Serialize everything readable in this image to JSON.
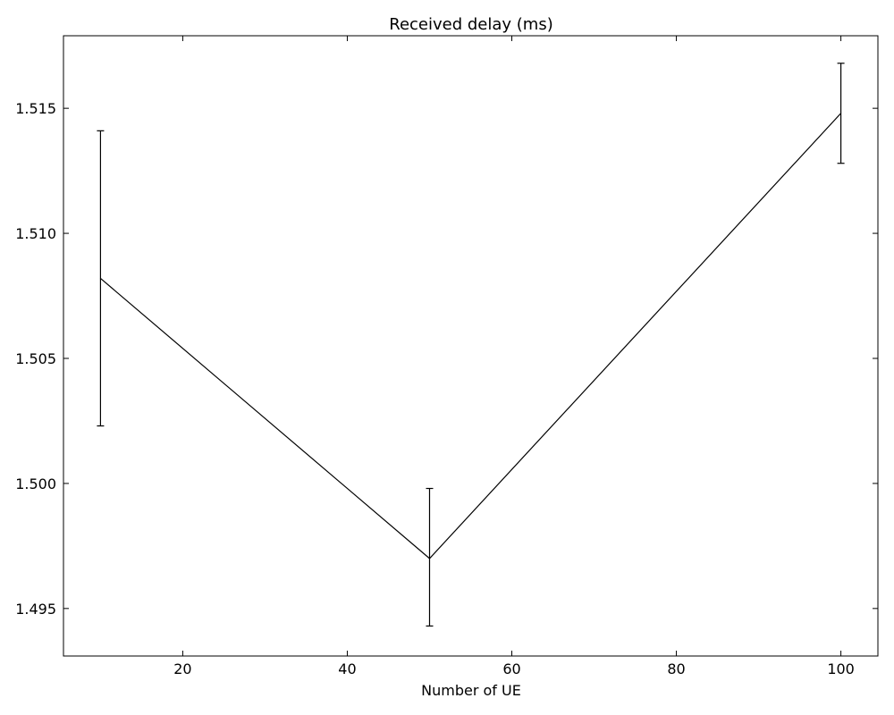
{
  "chart_data": {
    "type": "line",
    "title": "Received delay (ms)",
    "xlabel": "Number of UE",
    "ylabel": "",
    "xlim": [
      5.5,
      104.5
    ],
    "ylim": [
      1.4931,
      1.5179
    ],
    "x_ticks": [
      20,
      40,
      60,
      80,
      100
    ],
    "x_tick_labels": [
      "20",
      "40",
      "60",
      "80",
      "100"
    ],
    "y_ticks": [
      1.495,
      1.5,
      1.505,
      1.51,
      1.515
    ],
    "y_tick_labels": [
      "1.495",
      "1.500",
      "1.505",
      "1.510",
      "1.515"
    ],
    "grid": false,
    "legend": "none",
    "line_color": "#000000",
    "series": [
      {
        "x": [
          10,
          50,
          100
        ],
        "y": [
          1.5082,
          1.497,
          1.5148
        ],
        "error_low": [
          1.5023,
          1.4943,
          1.5128
        ],
        "error_high": [
          1.5141,
          1.4998,
          1.5168
        ]
      }
    ]
  }
}
